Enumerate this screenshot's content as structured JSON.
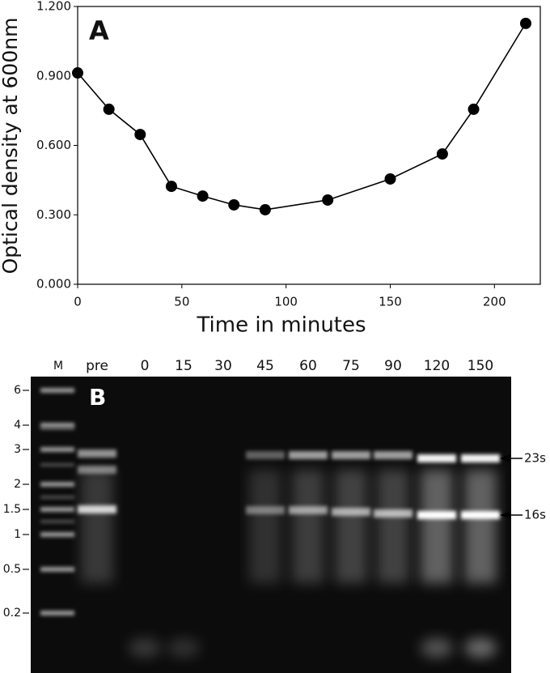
{
  "chart_data": {
    "type": "line",
    "panel_label": "A",
    "x_label": "Time in minutes",
    "y_label": "Optical density at 600nm",
    "x": [
      0,
      15,
      30,
      45,
      60,
      75,
      90,
      120,
      150,
      175,
      190,
      215
    ],
    "values": [
      0.913,
      0.756,
      0.647,
      0.423,
      0.381,
      0.343,
      0.322,
      0.364,
      0.455,
      0.563,
      0.756,
      1.127
    ],
    "color": "#000000",
    "xlim": [
      0,
      222
    ],
    "xticks": [
      0,
      50,
      100,
      150,
      200
    ],
    "ylim": [
      0,
      1.2
    ],
    "yticks": [
      {
        "value": 0,
        "label": "0.000"
      },
      {
        "value": 0.3,
        "label": "0.300"
      },
      {
        "value": 0.6,
        "label": "0.600"
      },
      {
        "value": 0.9,
        "label": "0.900"
      },
      {
        "value": 1.2,
        "label": "1.200"
      }
    ]
  },
  "gel": {
    "panel_label": "B",
    "lanes": [
      "M",
      "pre",
      "0",
      "15",
      "30",
      "45",
      "60",
      "75",
      "90",
      "120",
      "150"
    ],
    "markers": [
      "6",
      "4",
      "3",
      "2",
      "1.5",
      "1",
      "0.5",
      "0.2"
    ],
    "annotations": [
      "23s",
      "16s"
    ]
  }
}
